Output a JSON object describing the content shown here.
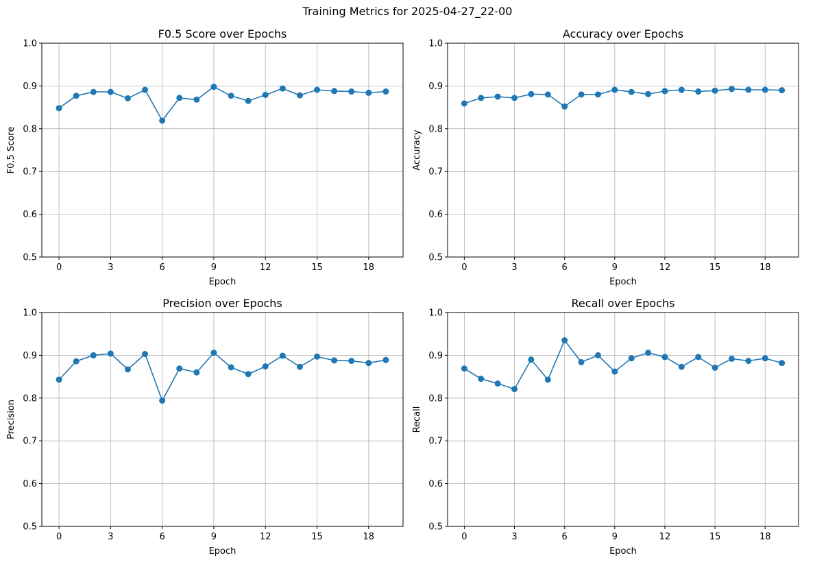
{
  "figure_title": "Training Metrics for 2025-04-27_22-00",
  "colors": {
    "series": "#1f77b4",
    "grid": "#b0b0b0",
    "axes": "#000000"
  },
  "chart_data": [
    {
      "type": "line",
      "title": "F0.5 Score over Epochs",
      "xlabel": "Epoch",
      "ylabel": "F0.5 Score",
      "xlim": [
        -1,
        20
      ],
      "ylim": [
        0.5,
        1.0
      ],
      "xticks": [
        0,
        3,
        6,
        9,
        12,
        15,
        18
      ],
      "yticks": [
        0.5,
        0.6,
        0.7,
        0.8,
        0.9,
        1.0
      ],
      "ytick_labels": [
        "0.5",
        "0.6",
        "0.7",
        "0.8",
        "0.9",
        "1.0"
      ],
      "grid": true,
      "marker": "circle",
      "x": [
        0,
        1,
        2,
        3,
        4,
        5,
        6,
        7,
        8,
        9,
        10,
        11,
        12,
        13,
        14,
        15,
        16,
        17,
        18,
        19
      ],
      "values": [
        0.848,
        0.877,
        0.886,
        0.886,
        0.871,
        0.891,
        0.819,
        0.872,
        0.868,
        0.898,
        0.877,
        0.865,
        0.879,
        0.894,
        0.878,
        0.891,
        0.888,
        0.887,
        0.884,
        0.887
      ]
    },
    {
      "type": "line",
      "title": "Accuracy over Epochs",
      "xlabel": "Epoch",
      "ylabel": "Accuracy",
      "xlim": [
        -1,
        20
      ],
      "ylim": [
        0.5,
        1.0
      ],
      "xticks": [
        0,
        3,
        6,
        9,
        12,
        15,
        18
      ],
      "yticks": [
        0.5,
        0.6,
        0.7,
        0.8,
        0.9,
        1.0
      ],
      "ytick_labels": [
        "0.5",
        "0.6",
        "0.7",
        "0.8",
        "0.9",
        "1.0"
      ],
      "grid": true,
      "marker": "circle",
      "x": [
        0,
        1,
        2,
        3,
        4,
        5,
        6,
        7,
        8,
        9,
        10,
        11,
        12,
        13,
        14,
        15,
        16,
        17,
        18,
        19
      ],
      "values": [
        0.859,
        0.872,
        0.875,
        0.872,
        0.881,
        0.88,
        0.852,
        0.88,
        0.88,
        0.891,
        0.886,
        0.881,
        0.888,
        0.891,
        0.887,
        0.889,
        0.893,
        0.891,
        0.891,
        0.89
      ]
    },
    {
      "type": "line",
      "title": "Precision over Epochs",
      "xlabel": "Epoch",
      "ylabel": "Precision",
      "xlim": [
        -1,
        20
      ],
      "ylim": [
        0.5,
        1.0
      ],
      "xticks": [
        0,
        3,
        6,
        9,
        12,
        15,
        18
      ],
      "yticks": [
        0.5,
        0.6,
        0.7,
        0.8,
        0.9,
        1.0
      ],
      "ytick_labels": [
        "0.5",
        "0.6",
        "0.7",
        "0.8",
        "0.9",
        "1.0"
      ],
      "grid": true,
      "marker": "circle",
      "x": [
        0,
        1,
        2,
        3,
        4,
        5,
        6,
        7,
        8,
        9,
        10,
        11,
        12,
        13,
        14,
        15,
        16,
        17,
        18,
        19
      ],
      "values": [
        0.843,
        0.886,
        0.9,
        0.904,
        0.867,
        0.903,
        0.794,
        0.869,
        0.86,
        0.906,
        0.872,
        0.856,
        0.874,
        0.899,
        0.873,
        0.897,
        0.888,
        0.887,
        0.882,
        0.889
      ]
    },
    {
      "type": "line",
      "title": "Recall over Epochs",
      "xlabel": "Epoch",
      "ylabel": "Recall",
      "xlim": [
        -1,
        20
      ],
      "ylim": [
        0.5,
        1.0
      ],
      "xticks": [
        0,
        3,
        6,
        9,
        12,
        15,
        18
      ],
      "yticks": [
        0.5,
        0.6,
        0.7,
        0.8,
        0.9,
        1.0
      ],
      "ytick_labels": [
        "0.5",
        "0.6",
        "0.7",
        "0.8",
        "0.9",
        "1.0"
      ],
      "grid": true,
      "marker": "circle",
      "x": [
        0,
        1,
        2,
        3,
        4,
        5,
        6,
        7,
        8,
        9,
        10,
        11,
        12,
        13,
        14,
        15,
        16,
        17,
        18,
        19
      ],
      "values": [
        0.869,
        0.845,
        0.834,
        0.821,
        0.89,
        0.843,
        0.935,
        0.884,
        0.9,
        0.862,
        0.893,
        0.906,
        0.896,
        0.873,
        0.896,
        0.871,
        0.892,
        0.887,
        0.893,
        0.882
      ]
    }
  ]
}
